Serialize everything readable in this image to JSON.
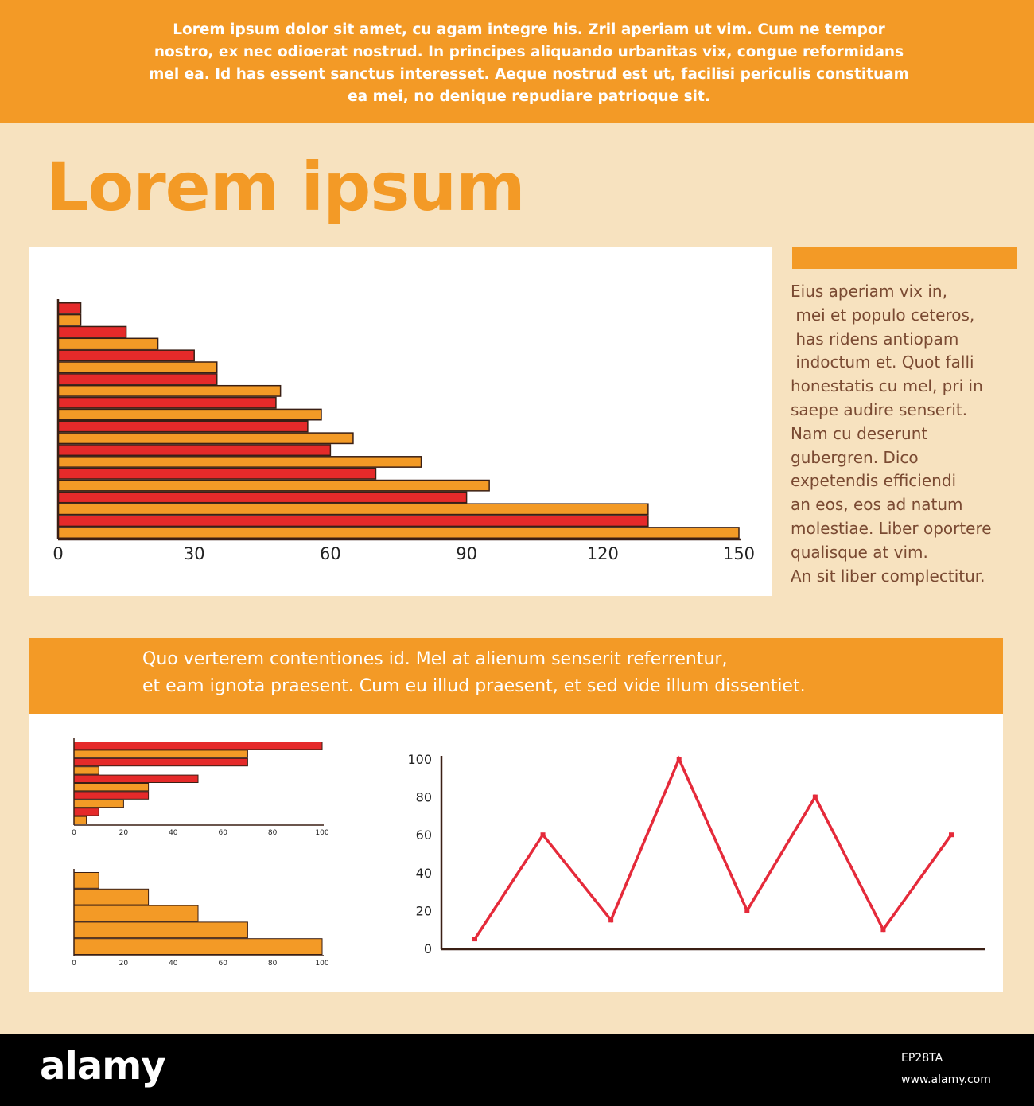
{
  "header": {
    "banner_text": "Lorem ipsum dolor sit amet, cu agam integre his. Zril aperiam ut vim. Cum ne tempor nostro, ex nec odioerat nostrud. In principes aliquando urbanitas vix, congue reformidans mel ea. Id has essent sanctus interesset. Aeque nostrud est ut, facilisi periculis constituam ea mei, no denique repudiare patrioque sit."
  },
  "title": "Lorem ipsum",
  "sidebar": {
    "lines": [
      "Eius aperiam vix in,",
      " mei et populo ceteros,",
      " has ridens antiopam",
      " indoctum et. Quot falli",
      "honestatis cu mel, pri in",
      "saepe audire senserit.",
      "Nam cu deserunt",
      "gubergren. Dico",
      "expetendis efficiendi",
      "an eos, eos ad natum",
      "molestiae. Liber oportere",
      "qualisque at vim.",
      "An sit liber complectitur."
    ]
  },
  "mid_banner": {
    "line1": "Quo verterem contentiones id. Mel at alienum senserit referrentur,",
    "line2": "et eam ignota praesent. Cum eu illud praesent, et sed vide illum dissentiet."
  },
  "footer": {
    "logo": "alamy",
    "image_id": "EP28TA",
    "url": "www.alamy.com"
  },
  "colors": {
    "orange": "#f39a26",
    "red": "#e52a2a",
    "bar_orange": "#f39a26",
    "axis": "#3a1f14",
    "line": "#e52a3a"
  },
  "chart_data": [
    {
      "type": "bar",
      "orientation": "horizontal",
      "xlim": [
        0,
        150
      ],
      "xticks": [
        "0",
        "30",
        "60",
        "90",
        "120",
        "150"
      ],
      "series": [
        {
          "values": [
            5,
            15,
            30,
            35,
            48,
            55,
            60,
            70,
            90,
            130
          ]
        },
        {
          "values": [
            5,
            22,
            35,
            49,
            58,
            65,
            80,
            95,
            130,
            150
          ]
        }
      ]
    },
    {
      "type": "bar",
      "orientation": "horizontal",
      "xlim": [
        0,
        100
      ],
      "xticks": [
        "0",
        "20",
        "40",
        "60",
        "80",
        "100"
      ],
      "series": [
        {
          "values": [
            100,
            70,
            50,
            30,
            10
          ]
        },
        {
          "values": [
            70,
            10,
            30,
            20,
            5
          ]
        }
      ]
    },
    {
      "type": "bar",
      "orientation": "horizontal",
      "xlim": [
        0,
        100
      ],
      "xticks": [
        "0",
        "20",
        "40",
        "60",
        "80",
        "100"
      ],
      "series": [
        {
          "values": [
            10,
            30,
            50,
            70,
            100
          ]
        }
      ]
    },
    {
      "type": "line",
      "ylim": [
        0,
        100
      ],
      "yticks": [
        "0",
        "20",
        "40",
        "60",
        "80",
        "100"
      ],
      "series": [
        {
          "values": [
            5,
            60,
            15,
            100,
            20,
            80,
            10,
            60
          ]
        }
      ]
    }
  ]
}
